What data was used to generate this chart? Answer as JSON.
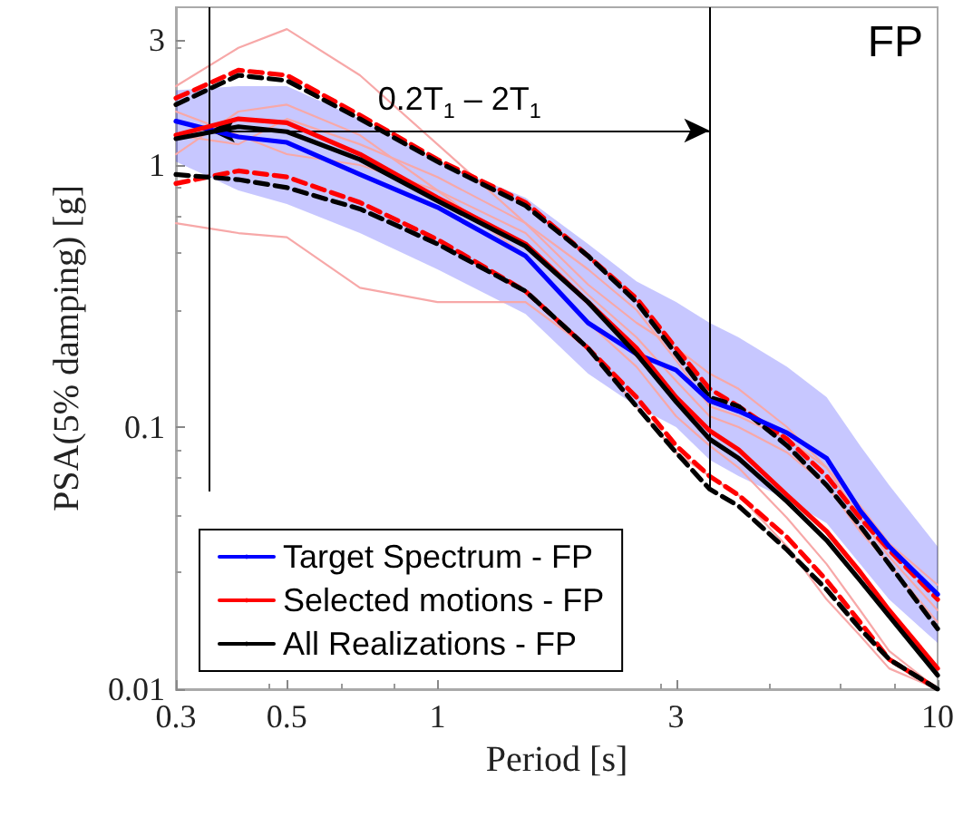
{
  "chart_data": {
    "type": "line",
    "xlabel": "Period [s]",
    "ylabel": "PSA(5% damping) [g]",
    "x": [
      0.3,
      0.4,
      0.5,
      0.7,
      1,
      1.5,
      2,
      2.5,
      3,
      3.5,
      4,
      5,
      6,
      7,
      8,
      10
    ],
    "series": [
      {
        "color": "#f7a8a8",
        "values": [
          2.0,
          2.8,
          3.3,
          2.2,
          1.2,
          0.6,
          0.35,
          0.25,
          0.2,
          0.16,
          0.14,
          0.1,
          0.07,
          0.045,
          0.032,
          0.02
        ]
      },
      {
        "color": "#f7a8a8",
        "values": [
          0.6,
          0.55,
          0.53,
          0.34,
          0.3,
          0.3,
          0.2,
          0.12,
          0.08,
          0.065,
          0.055,
          0.035,
          0.022,
          0.016,
          0.012,
          0.01
        ]
      },
      {
        "color": "#f7a8a8",
        "values": [
          1.6,
          1.3,
          1.1,
          1.0,
          0.8,
          0.55,
          0.32,
          0.22,
          0.15,
          0.11,
          0.1,
          0.08,
          0.06,
          0.04,
          0.03,
          0.018
        ]
      },
      {
        "color": "#f7a8a8",
        "values": [
          1.1,
          1.6,
          1.7,
          1.3,
          0.8,
          0.45,
          0.25,
          0.17,
          0.11,
          0.085,
          0.07,
          0.045,
          0.03,
          0.02,
          0.014,
          0.01
        ]
      },
      {
        "color": "#f7a8a8",
        "values": [
          1.3,
          1.2,
          1.5,
          1.2,
          0.9,
          0.6,
          0.4,
          0.28,
          0.18,
          0.12,
          0.11,
          0.09,
          0.07,
          0.05,
          0.036,
          0.025
        ]
      },
      {
        "name": "Target Spectrum - FP",
        "color": "#0000ff",
        "values": [
          1.47,
          1.28,
          1.22,
          0.92,
          0.69,
          0.45,
          0.25,
          0.19,
          0.165,
          0.126,
          0.115,
          0.095,
          0.076,
          0.048,
          0.035,
          0.023
        ],
        "lower": [
          1.03,
          0.8,
          0.71,
          0.55,
          0.4,
          0.27,
          0.16,
          0.12,
          0.1,
          0.075,
          0.065,
          0.053,
          0.043,
          0.03,
          0.022,
          0.015
        ],
        "upper": [
          1.93,
          2.0,
          2.0,
          1.5,
          1.03,
          0.75,
          0.5,
          0.36,
          0.3,
          0.25,
          0.22,
          0.17,
          0.13,
          0.085,
          0.06,
          0.035
        ]
      },
      {
        "color": "#ff0000",
        "line_style": "dashed",
        "values": [
          1.8,
          2.3,
          2.2,
          1.55,
          1.05,
          0.72,
          0.45,
          0.31,
          0.2,
          0.14,
          0.12,
          0.09,
          0.065,
          0.045,
          0.034,
          0.022
        ]
      },
      {
        "color": "#ff0000",
        "line_style": "dashed",
        "values": [
          0.85,
          0.95,
          0.9,
          0.72,
          0.52,
          0.33,
          0.2,
          0.13,
          0.085,
          0.065,
          0.055,
          0.038,
          0.026,
          0.018,
          0.013,
          0.01
        ]
      },
      {
        "color": "#000000",
        "line_style": "dashed",
        "values": [
          1.7,
          2.2,
          2.1,
          1.5,
          1.03,
          0.7,
          0.45,
          0.3,
          0.19,
          0.13,
          0.12,
          0.085,
          0.06,
          0.042,
          0.03,
          0.017
        ]
      },
      {
        "color": "#000000",
        "line_style": "dashed",
        "values": [
          0.92,
          0.88,
          0.82,
          0.68,
          0.5,
          0.33,
          0.2,
          0.12,
          0.08,
          0.058,
          0.05,
          0.034,
          0.024,
          0.017,
          0.013,
          0.01
        ]
      },
      {
        "name": "Selected motions - FP",
        "color": "#ff0000",
        "values": [
          1.3,
          1.5,
          1.45,
          1.1,
          0.75,
          0.5,
          0.3,
          0.2,
          0.13,
          0.097,
          0.082,
          0.055,
          0.04,
          0.028,
          0.02,
          0.012
        ]
      },
      {
        "name": "All Realizations - FP",
        "color": "#000000",
        "values": [
          1.26,
          1.4,
          1.34,
          1.05,
          0.73,
          0.49,
          0.3,
          0.19,
          0.125,
          0.09,
          0.076,
          0.052,
          0.037,
          0.026,
          0.019,
          0.0113
        ]
      }
    ],
    "xlim": [
      0.3,
      10
    ],
    "xticks": [
      0.3,
      0.5,
      1,
      3,
      10
    ],
    "ylim": [
      0.01,
      4
    ],
    "yticks": [
      0.01,
      0.1,
      1,
      3
    ],
    "log": "xy",
    "grid": false,
    "legend": "bottom left",
    "marker": "none",
    "line_style": "solid",
    "ref_lines": [
      {
        "axis": "x",
        "value": 0.35
      },
      {
        "axis": "x",
        "value": 3.5
      }
    ],
    "annotations": [
      "FP",
      "0.2T$_{1}$ – 2T$_{1}$"
    ]
  }
}
